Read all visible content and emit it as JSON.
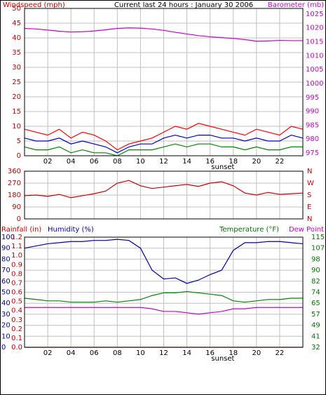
{
  "colors": {
    "wind_axis": "#cc0000",
    "baro_axis": "#cc00cc",
    "rain_axis": "#cc0000",
    "humidity_axis": "#0000aa",
    "temp_axis": "#007700",
    "dew_axis": "#cc00cc",
    "dir_axis": "#cc0000",
    "frame": "#000000",
    "grid": "#c0c0c0"
  },
  "chart_data": [
    {
      "type": "line",
      "title": "Current last 24 hours : January 30 2006",
      "left_axis_label": "Windspeed (mph)",
      "right_axis_label": "Barometer (mb)",
      "x_ticks": [
        "02",
        "04",
        "06",
        "08",
        "10",
        "12",
        "14",
        "16",
        "18",
        "20",
        "22"
      ],
      "x_annotation": "sunset",
      "left_ticks": [
        "0",
        "5",
        "10",
        "15",
        "20",
        "25",
        "30",
        "35",
        "40",
        "45",
        "50"
      ],
      "right_ticks": [
        "975",
        "980",
        "985",
        "990",
        "995",
        "1000",
        "1005",
        "1010",
        "1015",
        "1020",
        "1025"
      ],
      "ylim_left": [
        0,
        50
      ],
      "ylim_right": [
        974,
        1027
      ],
      "grid": true,
      "x_hours": [
        0.0,
        1.0,
        2.0,
        3.0,
        4.0,
        5.0,
        6.0,
        7.0,
        8.0,
        9.0,
        10.0,
        11.0,
        12.0,
        13.0,
        14.0,
        15.0,
        16.0,
        17.0,
        18.0,
        19.0,
        20.0,
        21.0,
        22.0,
        23.0,
        24.0
      ],
      "series": [
        {
          "color": "#cc00cc",
          "axis": "right",
          "values": [
            1019.8,
            1019.6,
            1019.2,
            1018.8,
            1018.5,
            1018.6,
            1018.9,
            1019.3,
            1019.8,
            1020.0,
            1019.9,
            1019.6,
            1019.1,
            1018.4,
            1017.8,
            1017.2,
            1016.8,
            1016.5,
            1016.2,
            1015.8,
            1015.2,
            1015.3,
            1015.5,
            1015.4,
            1015.4
          ]
        },
        {
          "color": "#ff0000",
          "axis": "left",
          "values": [
            9,
            8,
            7,
            9,
            6,
            8,
            7,
            5,
            2,
            4,
            5,
            6,
            8,
            10,
            9,
            11,
            10,
            9,
            8,
            7,
            9,
            8,
            7,
            10,
            9
          ]
        },
        {
          "color": "#0000cc",
          "axis": "left",
          "values": [
            6,
            5,
            5,
            6,
            4,
            5,
            4,
            3,
            1,
            3,
            4,
            4,
            6,
            7,
            6,
            7,
            7,
            6,
            6,
            5,
            6,
            5,
            5,
            7,
            6
          ]
        },
        {
          "color": "#008800",
          "axis": "left",
          "values": [
            3,
            2,
            2,
            3,
            1,
            2,
            1,
            1,
            0,
            2,
            2,
            2,
            3,
            4,
            3,
            4,
            4,
            3,
            3,
            2,
            3,
            2,
            2,
            3,
            3
          ]
        }
      ]
    },
    {
      "type": "line",
      "left_ticks": [
        "0",
        "90",
        "180",
        "270",
        "360"
      ],
      "right_ticks": [
        "N",
        "E",
        "S",
        "W",
        "N"
      ],
      "ylim": [
        0,
        360
      ],
      "grid": true,
      "x_hours": [
        0,
        1,
        2,
        3,
        4,
        5,
        6,
        7,
        8,
        9,
        10,
        11,
        12,
        13,
        14,
        15,
        16,
        17,
        18,
        19,
        20,
        21,
        22,
        23,
        24
      ],
      "series": [
        {
          "color": "#cc0000",
          "values": [
            175,
            180,
            170,
            185,
            160,
            175,
            190,
            210,
            270,
            290,
            250,
            230,
            240,
            250,
            260,
            245,
            270,
            280,
            250,
            195,
            180,
            200,
            185,
            190,
            195
          ]
        }
      ]
    },
    {
      "type": "line",
      "left_axis_label_1": "Rainfall (in)",
      "left_axis_label_2": "Humidity (%)",
      "right_axis_label_1": "Temperature (°F)",
      "right_axis_label_2": "Dew Point",
      "x_ticks": [
        "02",
        "04",
        "06",
        "08",
        "10",
        "12",
        "14",
        "16",
        "18",
        "20",
        "22"
      ],
      "x_annotation": "sunset",
      "rain_ticks": [
        "0.0",
        "0.1",
        "0.2",
        "0.3",
        "0.4",
        "0.5",
        "0.6",
        "0.7",
        "0.8",
        "0.9",
        "1.0",
        "1.1",
        "1.2"
      ],
      "humidity_ticks": [
        "0",
        "10",
        "20",
        "30",
        "40",
        "50",
        "60",
        "70",
        "80",
        "90",
        "100"
      ],
      "temp_ticks": [
        "32",
        "41",
        "49",
        "57",
        "65",
        "74",
        "82",
        "90",
        "98",
        "107",
        "115"
      ],
      "ylim_humidity": [
        0,
        100
      ],
      "ylim_temp": [
        32,
        115
      ],
      "grid": true,
      "x_hours": [
        0,
        1,
        2,
        3,
        4,
        5,
        6,
        7,
        8,
        9,
        10,
        11,
        12,
        13,
        14,
        15,
        16,
        17,
        18,
        19,
        20,
        21,
        22,
        23,
        24
      ],
      "series": [
        {
          "color": "#0000aa",
          "axis": "humidity",
          "values": [
            90,
            92,
            94,
            95,
            96,
            96,
            97,
            97,
            98,
            97,
            90,
            70,
            62,
            63,
            58,
            61,
            66,
            70,
            88,
            95,
            95,
            96,
            96,
            95,
            94
          ]
        },
        {
          "color": "#008800",
          "axis": "temp",
          "values": [
            69,
            68,
            67,
            67,
            66,
            66,
            66,
            67,
            66,
            67,
            68,
            71,
            73,
            73,
            74,
            73,
            72,
            71,
            67,
            66,
            67,
            68,
            68,
            69,
            69
          ]
        },
        {
          "color": "#cc00cc",
          "axis": "temp",
          "values": [
            62,
            62,
            62,
            62,
            62,
            62,
            62,
            62,
            62,
            62,
            62,
            61,
            59,
            59,
            58,
            57,
            58,
            59,
            61,
            61,
            62,
            62,
            62,
            62,
            62
          ]
        },
        {
          "color": "#cc0000",
          "axis": "rain",
          "values": [
            0,
            0,
            0,
            0,
            0,
            0,
            0,
            0,
            0,
            0,
            0,
            0,
            0,
            0,
            0,
            0,
            0,
            0,
            0,
            0,
            0,
            0,
            0,
            0,
            0
          ]
        }
      ]
    }
  ]
}
